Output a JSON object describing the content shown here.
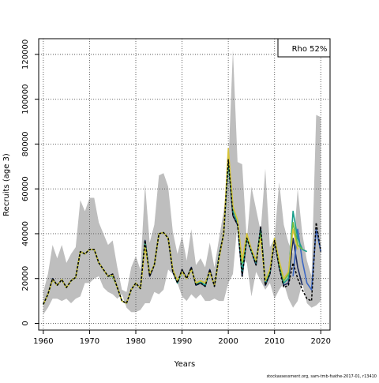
{
  "chart_data": {
    "type": "line",
    "xlabel": "Years",
    "ylabel": "Recruits (age 3)",
    "xlim": [
      1959,
      2022
    ],
    "ylim": [
      -3000,
      127000
    ],
    "x_ticks": [
      1960,
      1970,
      1980,
      1990,
      2000,
      2010,
      2020
    ],
    "y_ticks": [
      0,
      20000,
      40000,
      60000,
      80000,
      100000,
      120000
    ],
    "grid": true,
    "legend_text": "Rho 52%",
    "legend_position": "top-right",
    "footer": "stockassessment.org, sam-tmb-fsathe-2017-01, r13410",
    "band": {
      "color": "#bebebe",
      "years": [
        1960,
        1961,
        1962,
        1963,
        1964,
        1965,
        1966,
        1967,
        1968,
        1969,
        1970,
        1971,
        1972,
        1973,
        1974,
        1975,
        1976,
        1977,
        1978,
        1979,
        1980,
        1981,
        1982,
        1983,
        1984,
        1985,
        1986,
        1987,
        1988,
        1989,
        1990,
        1991,
        1992,
        1993,
        1994,
        1995,
        1996,
        1997,
        1998,
        1999,
        2000,
        2001,
        2002,
        2003,
        2004,
        2005,
        2006,
        2007,
        2008,
        2009,
        2010,
        2011,
        2012,
        2013,
        2014,
        2015,
        2016,
        2017,
        2018,
        2019,
        2020
      ],
      "lower": [
        4000,
        7000,
        11000,
        11000,
        10000,
        11000,
        9000,
        11000,
        12000,
        18000,
        18000,
        20000,
        21000,
        16000,
        14000,
        13000,
        11000,
        13000,
        7000,
        5000,
        5000,
        6000,
        9000,
        9000,
        14000,
        13000,
        15000,
        24000,
        22000,
        18000,
        12000,
        10000,
        13000,
        11000,
        13000,
        10000,
        10000,
        11000,
        10000,
        10000,
        18000,
        22000,
        45000,
        29000,
        27000,
        12000,
        23000,
        19000,
        15000,
        18000,
        11000,
        15000,
        18000,
        11000,
        7000,
        10000,
        18000,
        9000,
        7000,
        8000,
        10000
      ],
      "upper": [
        14000,
        22000,
        35000,
        29000,
        35000,
        27000,
        31000,
        34000,
        55000,
        50000,
        56000,
        56000,
        45000,
        40000,
        35000,
        37000,
        25000,
        15000,
        14000,
        25000,
        30000,
        24000,
        62000,
        36000,
        44000,
        66000,
        67000,
        61000,
        41000,
        31000,
        39000,
        28000,
        42000,
        26000,
        29000,
        25000,
        36000,
        25000,
        38000,
        50000,
        70000,
        122000,
        72000,
        71000,
        37000,
        61000,
        51000,
        41000,
        69000,
        34000,
        38000,
        63000,
        44000,
        36000,
        31000,
        60000,
        40000,
        28000,
        21000,
        93000,
        92000
      ]
    },
    "series": [
      {
        "color": "#1b2a5c",
        "width": 1.6,
        "dash": "",
        "x": [
          1960,
          1961,
          1962,
          1963,
          1964,
          1965,
          1966,
          1967,
          1968,
          1969,
          1970,
          1971,
          1972,
          1973,
          1974,
          1975,
          1976,
          1977,
          1978,
          1979,
          1980,
          1981,
          1982,
          1983,
          1984,
          1985,
          1986,
          1987,
          1988,
          1989,
          1990,
          1991,
          1992,
          1993,
          1994,
          1995,
          1996,
          1997,
          1998,
          1999,
          2000,
          2001,
          2002,
          2003,
          2004,
          2005,
          2006,
          2007,
          2008,
          2009,
          2010,
          2011,
          2012,
          2013,
          2014,
          2015,
          2016
        ],
        "y": [
          8500,
          13000,
          20000,
          17000,
          19500,
          16000,
          19000,
          20500,
          32000,
          31000,
          33000,
          33000,
          27000,
          24000,
          21000,
          22000,
          16000,
          10000,
          9000,
          15000,
          18000,
          15500,
          37000,
          21000,
          26000,
          40000,
          40500,
          38000,
          23000,
          18000,
          24000,
          20000,
          25000,
          17000,
          18000,
          16500,
          24000,
          16500,
          30000,
          40000,
          73000,
          48000,
          44000,
          21000,
          38000,
          32000,
          26000,
          43000,
          17000,
          22000,
          37000,
          25000,
          17000,
          18000,
          38000,
          25000,
          17000
        ]
      },
      {
        "color": "#3a66c4",
        "width": 1.6,
        "dash": "",
        "x": [
          2014,
          2015,
          2016,
          2017,
          2018,
          2019,
          2020
        ],
        "y": [
          21000,
          42000,
          28000,
          18000,
          15000,
          42000,
          32000
        ]
      },
      {
        "color": "#1a9e8a",
        "width": 1.6,
        "dash": "",
        "x": [
          1960,
          1961,
          1962,
          1963,
          1964,
          1965,
          1966,
          1967,
          1968,
          1969,
          1970,
          1971,
          1972,
          1973,
          1974,
          1975,
          1976,
          1977,
          1978,
          1979,
          1980,
          1981,
          1982,
          1983,
          1984,
          1985,
          1986,
          1987,
          1988,
          1989,
          1990,
          1991,
          1992,
          1993,
          1994,
          1995,
          1996,
          1997,
          1998,
          1999,
          2000,
          2001,
          2002,
          2003,
          2004,
          2005,
          2006,
          2007,
          2008,
          2009,
          2010,
          2011,
          2012,
          2013,
          2014,
          2015,
          2016,
          2017
        ],
        "y": [
          8500,
          13000,
          19500,
          17000,
          19500,
          16000,
          19000,
          20500,
          32000,
          31000,
          33000,
          33000,
          27000,
          24000,
          21000,
          21000,
          16000,
          10000,
          9000,
          15000,
          18000,
          15500,
          36000,
          22000,
          26000,
          40000,
          40500,
          38000,
          24000,
          18000,
          23000,
          20000,
          24500,
          17500,
          18500,
          17000,
          23000,
          17000,
          30000,
          40000,
          72000,
          50000,
          45000,
          23000,
          38000,
          32000,
          27000,
          42000,
          18000,
          23000,
          38000,
          26000,
          18000,
          20000,
          50000,
          38000,
          33000,
          32000
        ]
      },
      {
        "color": "#6fbf3a",
        "width": 1.6,
        "dash": "",
        "x": [
          1960,
          1961,
          1962,
          1963,
          1964,
          1965,
          1966,
          1967,
          1968,
          1969,
          1970,
          1971,
          1972,
          1973,
          1974,
          1975,
          1976,
          1977,
          1978,
          1979,
          1980,
          1981,
          1982,
          1983,
          1984,
          1985,
          1986,
          1987,
          1988,
          1989,
          1990,
          1991,
          1992,
          1993,
          1994,
          1995,
          1996,
          1997,
          1998,
          1999,
          2000,
          2001,
          2002,
          2003,
          2004,
          2005,
          2006,
          2007,
          2008,
          2009,
          2010,
          2011,
          2012,
          2013,
          2014,
          2015,
          2016
        ],
        "y": [
          8500,
          13000,
          19500,
          17000,
          19500,
          16000,
          19000,
          20500,
          32000,
          31000,
          33000,
          33000,
          27000,
          24000,
          21000,
          21500,
          16000,
          10000,
          9000,
          15000,
          18000,
          15500,
          35000,
          22000,
          26000,
          40000,
          40500,
          38000,
          24000,
          19000,
          23000,
          20000,
          24000,
          18000,
          19000,
          18000,
          23000,
          17000,
          29000,
          40000,
          76000,
          52000,
          46000,
          27000,
          39000,
          33000,
          28000,
          40000,
          19000,
          24000,
          38000,
          27000,
          19000,
          22000,
          45000,
          35000,
          33000
        ]
      },
      {
        "color": "#d7c43a",
        "width": 1.6,
        "dash": "",
        "x": [
          1960,
          1961,
          1962,
          1963,
          1964,
          1965,
          1966,
          1967,
          1968,
          1969,
          1970,
          1971,
          1972,
          1973,
          1974,
          1975,
          1976,
          1977,
          1978,
          1979,
          1980,
          1981,
          1982,
          1983,
          1984,
          1985,
          1986,
          1987,
          1988,
          1989,
          1990,
          1991,
          1992,
          1993,
          1994,
          1995,
          1996,
          1997,
          1998,
          1999,
          2000,
          2001,
          2002,
          2003,
          2004,
          2005,
          2006,
          2007,
          2008,
          2009,
          2010,
          2011,
          2012,
          2013,
          2014,
          2015
        ],
        "y": [
          8500,
          13000,
          19500,
          17000,
          19500,
          16000,
          19000,
          20500,
          32000,
          31000,
          33000,
          33000,
          27000,
          24000,
          21000,
          21500,
          16000,
          10000,
          9000,
          15000,
          18000,
          15500,
          34000,
          22000,
          26000,
          40000,
          40500,
          38000,
          24000,
          19000,
          23000,
          20000,
          24000,
          18000,
          19000,
          18000,
          23000,
          17000,
          29000,
          40000,
          78000,
          52000,
          46000,
          28000,
          40000,
          33000,
          28000,
          38000,
          19000,
          24000,
          38000,
          28000,
          20000,
          23000,
          42000,
          33000
        ]
      },
      {
        "color": "#000000",
        "width": 1.5,
        "dash": "3,2",
        "x": [
          1960,
          1961,
          1962,
          1963,
          1964,
          1965,
          1966,
          1967,
          1968,
          1969,
          1970,
          1971,
          1972,
          1973,
          1974,
          1975,
          1976,
          1977,
          1978,
          1979,
          1980,
          1981,
          1982,
          1983,
          1984,
          1985,
          1986,
          1987,
          1988,
          1989,
          1990,
          1991,
          1992,
          1993,
          1994,
          1995,
          1996,
          1997,
          1998,
          1999,
          2000,
          2001,
          2002,
          2003,
          2004,
          2005,
          2006,
          2007,
          2008,
          2009,
          2010,
          2011,
          2012,
          2013,
          2014,
          2015,
          2016,
          2017,
          2018,
          2019,
          2020
        ],
        "y": [
          8500,
          13000,
          20000,
          17000,
          19500,
          16000,
          19000,
          20500,
          32000,
          31000,
          33000,
          33000,
          27000,
          24000,
          21000,
          22000,
          16000,
          10000,
          9000,
          15000,
          18000,
          15500,
          37000,
          21000,
          26000,
          40000,
          40500,
          38000,
          23000,
          18000,
          24000,
          20000,
          25000,
          17000,
          18000,
          16500,
          24000,
          16500,
          30000,
          40000,
          73000,
          48000,
          44000,
          21000,
          38000,
          32000,
          26000,
          43000,
          17000,
          22000,
          37000,
          25000,
          16000,
          17000,
          27000,
          20000,
          15000,
          11000,
          10000,
          45000,
          32000
        ]
      }
    ]
  }
}
